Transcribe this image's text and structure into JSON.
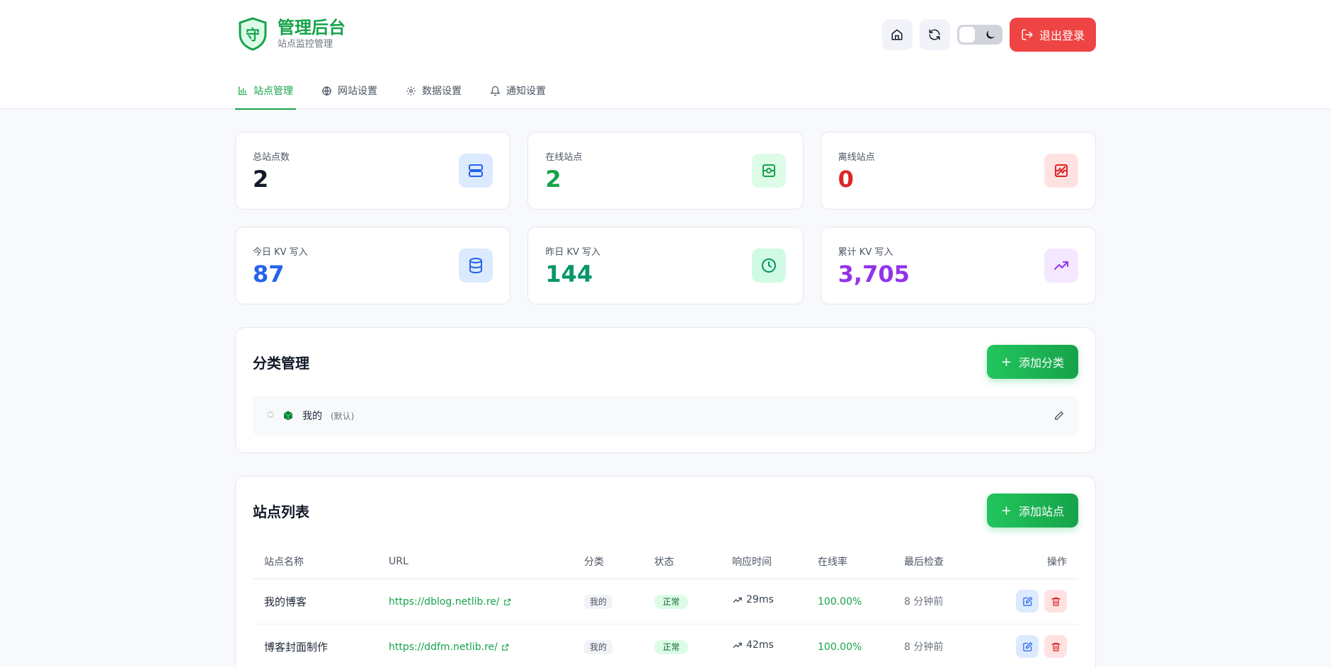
{
  "brand": {
    "title": "管理后台",
    "subtitle": "站点监控管理",
    "logo_glyph": "守"
  },
  "header": {
    "logout_label": "退出登录"
  },
  "tabs": [
    {
      "label": "站点管理",
      "icon": "bar-chart-icon",
      "active": true
    },
    {
      "label": "网站设置",
      "icon": "globe-icon"
    },
    {
      "label": "数据设置",
      "icon": "gear-icon"
    },
    {
      "label": "通知设置",
      "icon": "bell-icon"
    }
  ],
  "stats": [
    {
      "label": "总站点数",
      "value": "2",
      "color": "#111827",
      "icon_bg": "#dbeafe"
    },
    {
      "label": "在线站点",
      "value": "2",
      "color": "#16a34a",
      "icon_bg": "#dcfce7"
    },
    {
      "label": "离线站点",
      "value": "0",
      "color": "#dc2626",
      "icon_bg": "#fee2e2"
    },
    {
      "label": "今日 KV 写入",
      "value": "87",
      "color": "#2563eb",
      "icon_bg": "#dbeafe"
    },
    {
      "label": "昨日 KV 写入",
      "value": "144",
      "color": "#059669",
      "icon_bg": "#d1fae5"
    },
    {
      "label": "累计 KV 写入",
      "value": "3,705",
      "color": "#9333ea",
      "icon_bg": "#f3e8ff"
    }
  ],
  "categories": {
    "title": "分类管理",
    "add_label": "添加分类",
    "items": [
      {
        "name": "我的",
        "tag": "(默认)"
      }
    ]
  },
  "sites": {
    "title": "站点列表",
    "add_label": "添加站点",
    "columns": [
      "站点名称",
      "URL",
      "分类",
      "状态",
      "响应时间",
      "在线率",
      "最后检查",
      "操作"
    ],
    "rows": [
      {
        "name": "我的博客",
        "url": "https://dblog.netlib.re/",
        "category": "我的",
        "status": "正常",
        "response": "29ms",
        "uptime": "100.00%",
        "last_check": "8 分钟前"
      },
      {
        "name": "博客封面制作",
        "url": "https://ddfm.netlib.re/",
        "category": "我的",
        "status": "正常",
        "response": "42ms",
        "uptime": "100.00%",
        "last_check": "8 分钟前"
      }
    ]
  }
}
